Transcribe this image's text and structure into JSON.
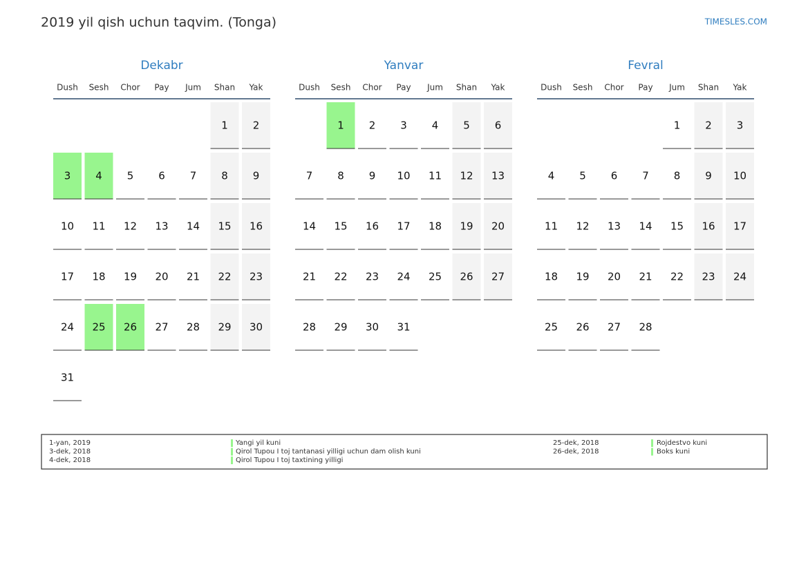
{
  "header": {
    "title": "2019 yil qish uchun taqvim. (Tonga)",
    "site": "TIMESLES.COM"
  },
  "weekdays": [
    "Dush",
    "Sesh",
    "Chor",
    "Pay",
    "Jum",
    "Shan",
    "Yak"
  ],
  "months": [
    {
      "name": "Dekabr",
      "holidays": [
        3,
        4,
        25,
        26
      ],
      "weeks": [
        [
          null,
          null,
          null,
          null,
          null,
          1,
          2
        ],
        [
          3,
          4,
          5,
          6,
          7,
          8,
          9
        ],
        [
          10,
          11,
          12,
          13,
          14,
          15,
          16
        ],
        [
          17,
          18,
          19,
          20,
          21,
          22,
          23
        ],
        [
          24,
          25,
          26,
          27,
          28,
          29,
          30
        ],
        [
          31,
          null,
          null,
          null,
          null,
          null,
          null
        ]
      ]
    },
    {
      "name": "Yanvar",
      "holidays": [
        1
      ],
      "weeks": [
        [
          null,
          1,
          2,
          3,
          4,
          5,
          6
        ],
        [
          7,
          8,
          9,
          10,
          11,
          12,
          13
        ],
        [
          14,
          15,
          16,
          17,
          18,
          19,
          20
        ],
        [
          21,
          22,
          23,
          24,
          25,
          26,
          27
        ],
        [
          28,
          29,
          30,
          31,
          null,
          null,
          null
        ]
      ]
    },
    {
      "name": "Fevral",
      "holidays": [],
      "weeks": [
        [
          null,
          null,
          null,
          null,
          1,
          2,
          3
        ],
        [
          4,
          5,
          6,
          7,
          8,
          9,
          10
        ],
        [
          11,
          12,
          13,
          14,
          15,
          16,
          17
        ],
        [
          18,
          19,
          20,
          21,
          22,
          23,
          24
        ],
        [
          25,
          26,
          27,
          28,
          null,
          null,
          null
        ]
      ]
    }
  ],
  "holiday_list": [
    [
      [
        "1-yan, 2019",
        "Yangi yil kuni"
      ],
      [
        "3-dek, 2018",
        "Qirol Tupou I toj tantanasi yilligi uchun dam olish kuni"
      ],
      [
        "4-dek, 2018",
        "Qirol Tupou I toj taxtining yilligi"
      ]
    ],
    [
      [
        "25-dek, 2018",
        "Rojdestvo kuni"
      ],
      [
        "26-dek, 2018",
        "Boks kuni"
      ]
    ]
  ]
}
